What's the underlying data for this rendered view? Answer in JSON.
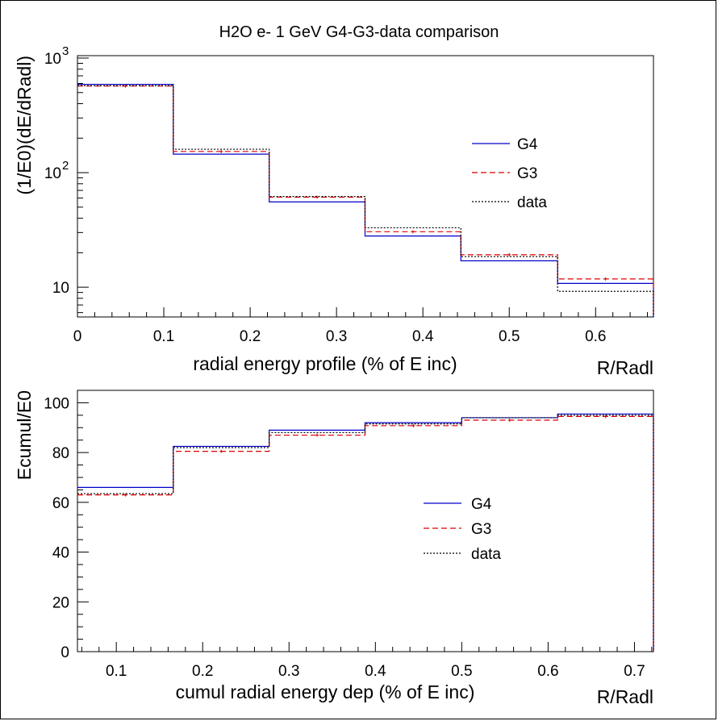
{
  "figure": {
    "title": "H2O  e- 1 GeV   G4-G3-data comparison"
  },
  "chart_data": [
    {
      "type": "line",
      "title": "H2O  e- 1 GeV   G4-G3-data comparison",
      "xlabel": "radial energy profile (% of E inc)",
      "xunit": "R/Radl",
      "ylabel": "(1/E0)(dE/dRadl)",
      "yscale": "log",
      "xlim": [
        0,
        0.667
      ],
      "ylim": [
        5.5,
        1050
      ],
      "grid": false,
      "legend_position": "right",
      "xticks": [
        "0",
        "0.1",
        "0.2",
        "0.3",
        "0.4",
        "0.5",
        "0.6"
      ],
      "xtick_values": [
        0,
        0.1,
        0.2,
        0.3,
        0.4,
        0.5,
        0.6
      ],
      "yticks": [
        {
          "label": "10",
          "exp": "",
          "value": 10
        },
        {
          "label": "10",
          "exp": "2",
          "value": 100
        },
        {
          "label": "10",
          "exp": "3",
          "value": 1000
        }
      ],
      "bin_edges": [
        0,
        0.111,
        0.222,
        0.333,
        0.444,
        0.556,
        0.667
      ],
      "series": [
        {
          "name": "G4",
          "style": "solid",
          "color": "#0000cc",
          "values": [
            590,
            145,
            55.5,
            28,
            17,
            10.8
          ]
        },
        {
          "name": "G3",
          "style": "dashed",
          "color": "#dd0000",
          "values": [
            570,
            153,
            61,
            30.5,
            19.2,
            11.8
          ]
        },
        {
          "name": "data",
          "style": "dotted",
          "color": "#000000",
          "values": [
            575,
            160,
            62,
            33,
            18.5,
            9.2
          ]
        }
      ],
      "data_markers": [
        570,
        153,
        61,
        30.5,
        19.2,
        11.8
      ]
    },
    {
      "type": "line",
      "xlabel": "cumul radial energy dep (% of E inc)",
      "xunit": "R/Radl",
      "ylabel": "Ecumul/E0",
      "yscale": "linear",
      "xlim": [
        0.055,
        0.722
      ],
      "ylim": [
        0,
        105
      ],
      "grid": false,
      "legend_position": "center",
      "xticks": [
        "0.1",
        "0.2",
        "0.3",
        "0.4",
        "0.5",
        "0.6",
        "0.7"
      ],
      "xtick_values": [
        0.1,
        0.2,
        0.3,
        0.4,
        0.5,
        0.6,
        0.7
      ],
      "yticks": [
        {
          "label": "0",
          "value": 0
        },
        {
          "label": "20",
          "value": 20
        },
        {
          "label": "40",
          "value": 40
        },
        {
          "label": "60",
          "value": 60
        },
        {
          "label": "80",
          "value": 80
        },
        {
          "label": "100",
          "value": 100
        }
      ],
      "bin_edges": [
        0.055,
        0.166,
        0.277,
        0.388,
        0.5,
        0.611,
        0.722
      ],
      "series": [
        {
          "name": "G4",
          "style": "solid",
          "color": "#0000cc",
          "values": [
            66,
            82.5,
            89,
            92,
            94,
            95.5
          ]
        },
        {
          "name": "G3",
          "style": "dashed",
          "color": "#dd0000",
          "values": [
            63,
            80.5,
            87,
            90.8,
            93,
            94.5
          ]
        },
        {
          "name": "data",
          "style": "dotted",
          "color": "#000000",
          "values": [
            63.5,
            82,
            88,
            91.5,
            94,
            95
          ]
        }
      ],
      "data_markers": [
        63,
        80.5,
        87,
        90.8,
        93,
        94.5
      ]
    }
  ]
}
